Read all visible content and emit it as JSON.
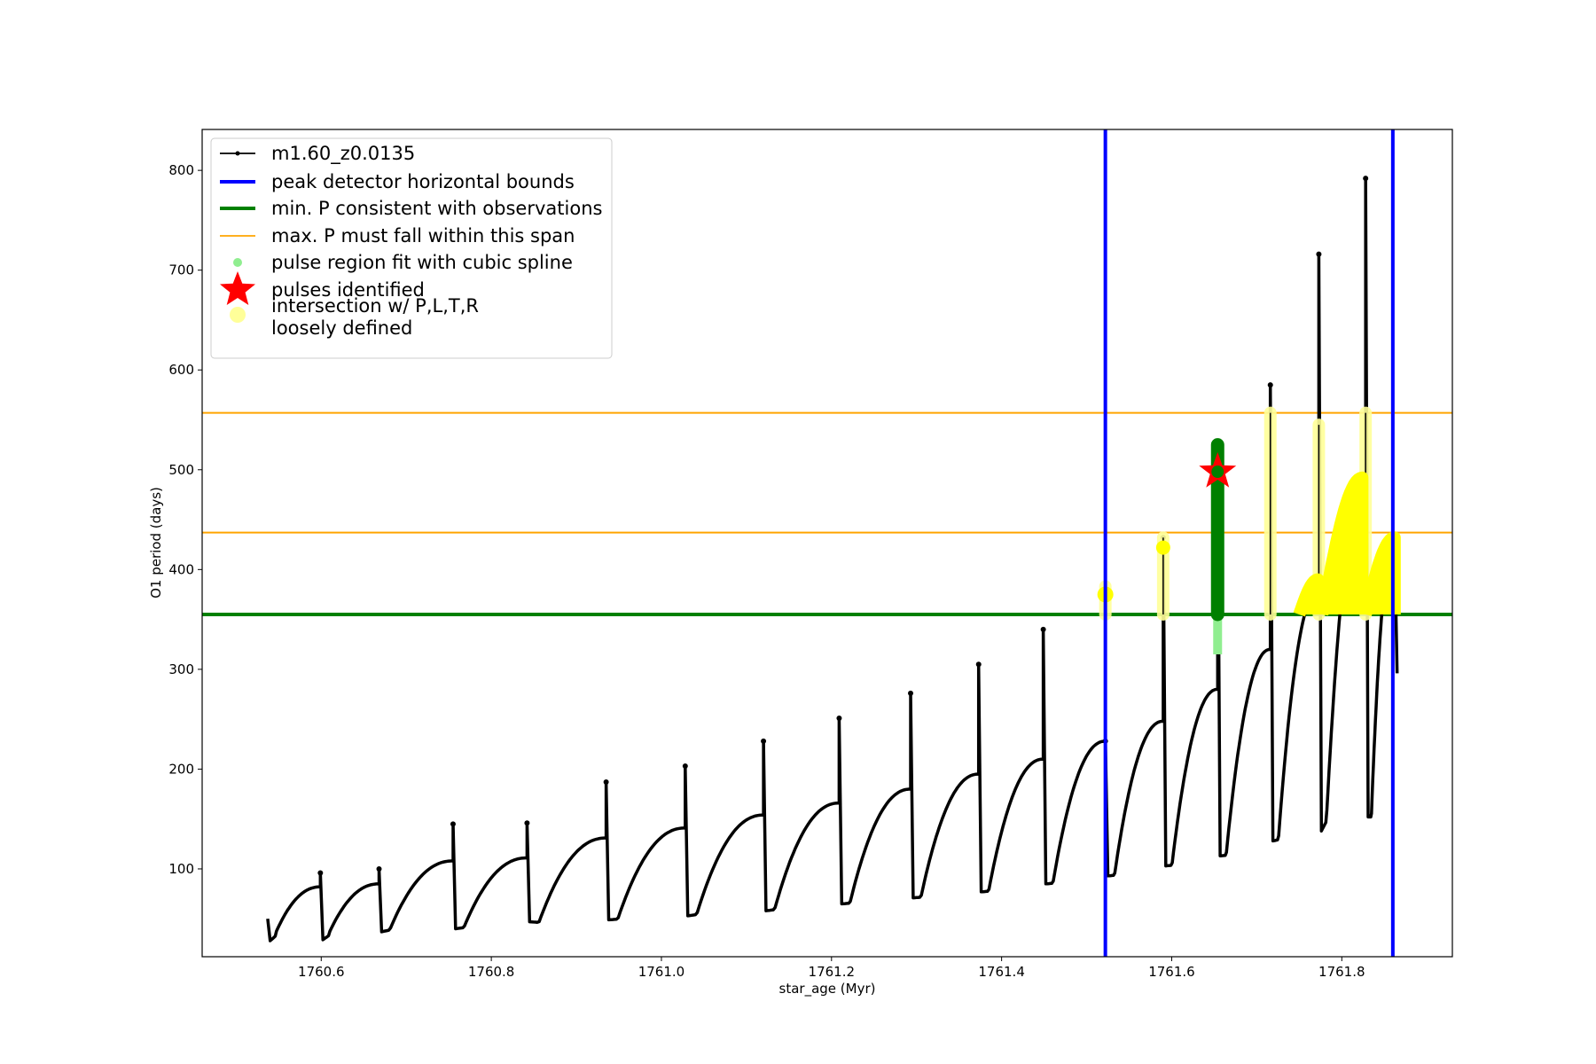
{
  "chart_data": {
    "type": "line",
    "xlabel": "star_age (Myr)",
    "ylabel": "O1 period (days)",
    "xlim": [
      1760.46,
      1761.93
    ],
    "ylim": [
      12,
      841
    ],
    "x_ticks": [
      1760.6,
      1760.8,
      1761.0,
      1761.2,
      1761.4,
      1761.6,
      1761.8
    ],
    "x_tick_labels": [
      "1760.6",
      "1760.8",
      "1761.0",
      "1761.2",
      "1761.4",
      "1761.6",
      "1761.8"
    ],
    "y_ticks": [
      100,
      200,
      300,
      400,
      500,
      600,
      700,
      800
    ],
    "y_tick_labels": [
      "100",
      "200",
      "300",
      "400",
      "500",
      "600",
      "700",
      "800"
    ],
    "grid": false,
    "legend_position": "upper-left",
    "legend": [
      {
        "label": "m1.60_z0.0135",
        "kind": "line-dot",
        "color": "#000000"
      },
      {
        "label": "peak detector horizontal bounds",
        "kind": "line",
        "color": "#0000ff"
      },
      {
        "label": "min. P consistent with observations",
        "kind": "line",
        "color": "#008000"
      },
      {
        "label": "max. P must fall within this span",
        "kind": "line",
        "color": "#ffa500"
      },
      {
        "label": "pulse region fit with cubic spline",
        "kind": "dot",
        "color": "#90ee90"
      },
      {
        "label": "pulses identified",
        "kind": "star",
        "color": "#ff0000"
      },
      {
        "label": "intersection w/ P,L,T,R\nloosely defined",
        "kind": "dot",
        "color": "#ffff99"
      }
    ],
    "series_main": {
      "name": "m1.60_z0.0135",
      "color": "#000000",
      "cycles": [
        {
          "start": 1760.537,
          "peak": 1760.599,
          "base": 37,
          "top": 82,
          "spike": 96,
          "dip": 28
        },
        {
          "start": 1760.599,
          "peak": 1760.668,
          "base": 37,
          "top": 85,
          "spike": 100,
          "dip": 29
        },
        {
          "start": 1760.668,
          "peak": 1760.755,
          "base": 40,
          "top": 108,
          "spike": 145,
          "dip": 37
        },
        {
          "start": 1760.755,
          "peak": 1760.842,
          "base": 42,
          "top": 111,
          "spike": 146,
          "dip": 40
        },
        {
          "start": 1760.842,
          "peak": 1760.935,
          "base": 46,
          "top": 131,
          "spike": 187,
          "dip": 47
        },
        {
          "start": 1760.935,
          "peak": 1761.028,
          "base": 50,
          "top": 141,
          "spike": 203,
          "dip": 49
        },
        {
          "start": 1761.028,
          "peak": 1761.12,
          "base": 55,
          "top": 154,
          "spike": 228,
          "dip": 53
        },
        {
          "start": 1761.12,
          "peak": 1761.209,
          "base": 60,
          "top": 166,
          "spike": 251,
          "dip": 58
        },
        {
          "start": 1761.209,
          "peak": 1761.293,
          "base": 66,
          "top": 180,
          "spike": 276,
          "dip": 65
        },
        {
          "start": 1761.293,
          "peak": 1761.373,
          "base": 72,
          "top": 195,
          "spike": 305,
          "dip": 71
        },
        {
          "start": 1761.373,
          "peak": 1761.449,
          "base": 78,
          "top": 210,
          "spike": 340,
          "dip": 77
        },
        {
          "start": 1761.449,
          "peak": 1761.522,
          "base": 86,
          "top": 228,
          "spike": 228,
          "dip": 85
        },
        {
          "start": 1761.522,
          "peak": 1761.59,
          "base": 94,
          "top": 248,
          "spike": 432,
          "dip": 93
        },
        {
          "start": 1761.59,
          "peak": 1761.654,
          "base": 104,
          "top": 280,
          "spike": 500,
          "dip": 103
        },
        {
          "start": 1761.654,
          "peak": 1761.716,
          "base": 114,
          "top": 320,
          "spike": 585,
          "dip": 113
        },
        {
          "start": 1761.716,
          "peak": 1761.773,
          "base": 130,
          "top": 380,
          "spike": 716,
          "dip": 128
        },
        {
          "start": 1761.773,
          "peak": 1761.828,
          "base": 155,
          "top": 490,
          "spike": 792,
          "dip": 138
        },
        {
          "start": 1761.828,
          "peak": 1761.862,
          "base": 152,
          "top": 430,
          "spike": 430,
          "dip": 152
        }
      ],
      "end": {
        "x": 1761.865,
        "y": 296
      }
    },
    "vertical_bounds": {
      "color": "#0000ff",
      "x": [
        1761.522,
        1761.86
      ]
    },
    "min_period": {
      "color": "#008000",
      "y": 355
    },
    "max_period_span": {
      "color": "#ffa500",
      "y": [
        437,
        557
      ]
    },
    "spline_region": {
      "color": "#90ee90",
      "x": 1761.654,
      "y_range": [
        315,
        525
      ]
    },
    "pulse_peak": {
      "color": "#ff0000",
      "x": 1761.654,
      "y": 498
    },
    "pulse_fit": {
      "color": "#008000",
      "x": 1761.654,
      "y_range": [
        355,
        525
      ]
    },
    "intersection": {
      "color": "#ffff00",
      "soft_color": "#ffff99",
      "bands": [
        {
          "x": 1761.522,
          "y_range": [
            355,
            383
          ]
        },
        {
          "x": 1761.59,
          "y_range": [
            355,
            432
          ]
        },
        {
          "x": 1761.716,
          "y_range": [
            355,
            557
          ]
        },
        {
          "x": 1761.773,
          "y_range": [
            355,
            545
          ]
        },
        {
          "x": 1761.828,
          "y_range": [
            355,
            557
          ]
        }
      ],
      "arcs": [
        {
          "x0": 1761.75,
          "x1": 1761.772,
          "y0": 355,
          "y1": 390
        },
        {
          "x0": 1761.777,
          "x1": 1761.824,
          "y0": 355,
          "y1": 492
        },
        {
          "x0": 1761.828,
          "x1": 1761.862,
          "y0": 355,
          "y1": 432
        }
      ]
    }
  }
}
